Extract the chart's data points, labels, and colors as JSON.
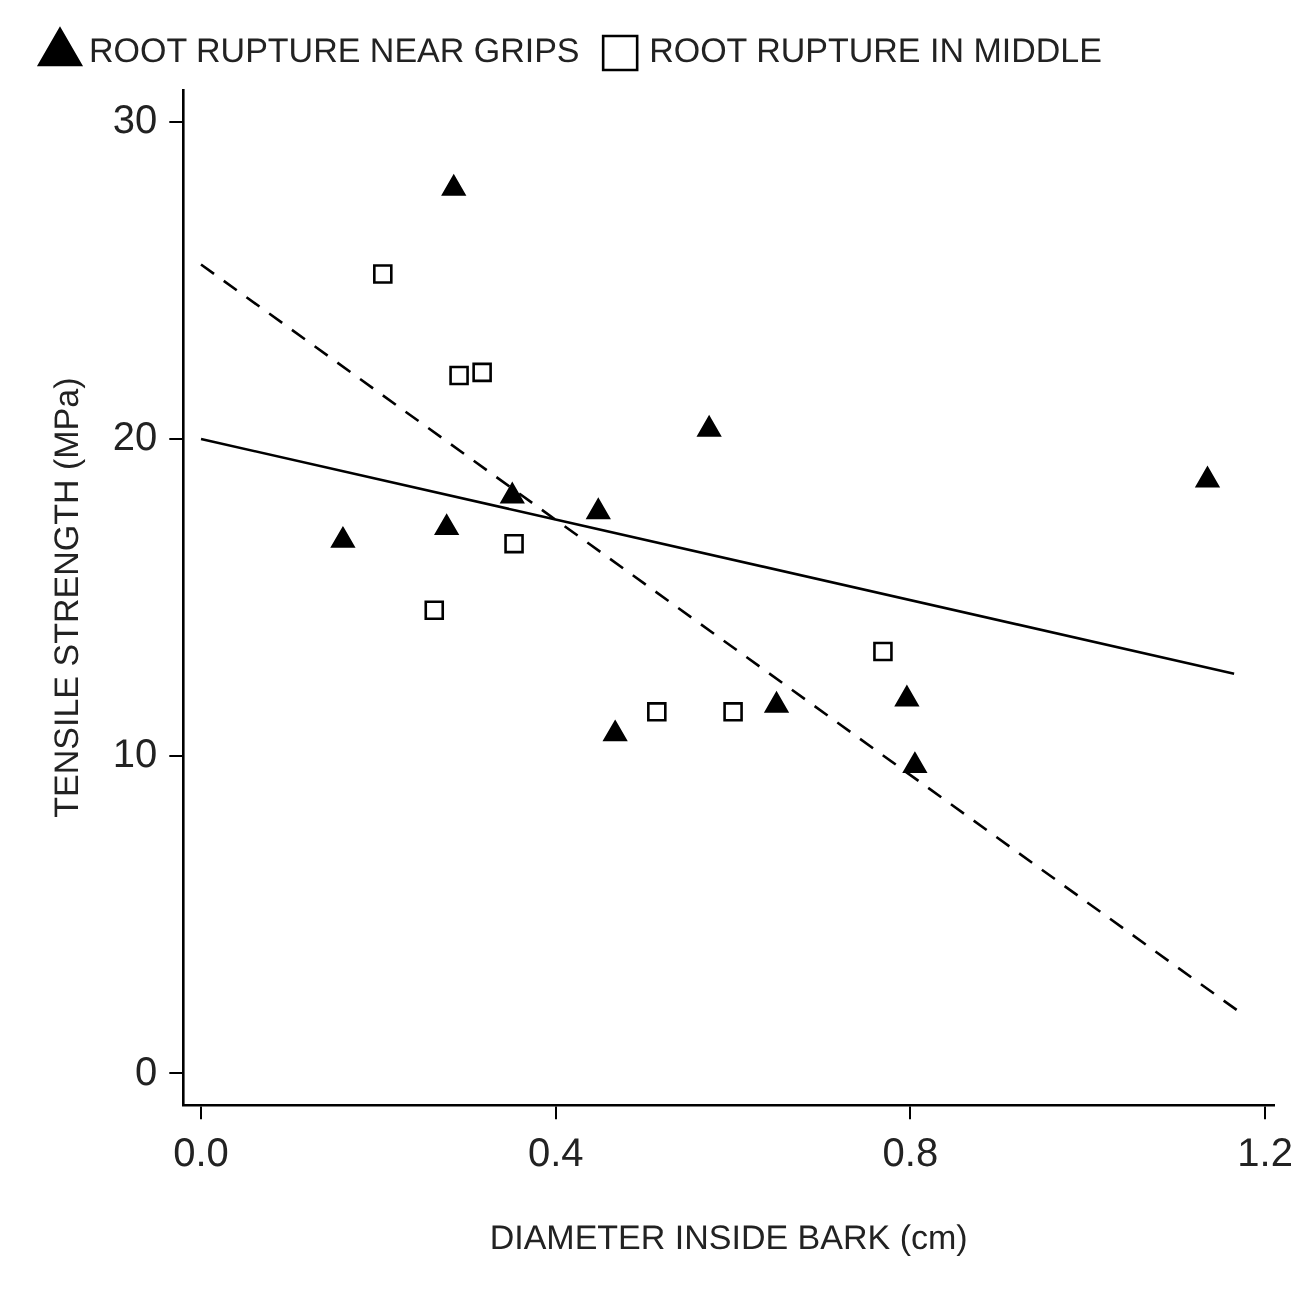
{
  "chart_data": {
    "type": "scatter",
    "xlabel": "DIAMETER INSIDE BARK (cm)",
    "ylabel": "TENSILE STRENGTH (MPa)",
    "xlim": [
      -0.02,
      1.21
    ],
    "xticks": [
      {
        "value": 0,
        "label": "0.0"
      },
      0.4,
      0.8,
      1.2
    ],
    "ylim": [
      -1,
      31
    ],
    "yticks": [
      0,
      10,
      20,
      30
    ],
    "grid": false,
    "legend": "top left",
    "series": [
      {
        "name": "ROOT RUPTURE NEAR GRIPS",
        "type": "scatter",
        "color": "#000000",
        "marker": "triangle",
        "line_style": "solid",
        "x": [
          0.285,
          0.573,
          0.16,
          0.277,
          0.351,
          0.448,
          0.467,
          0.649,
          0.796,
          0.805,
          1.135
        ],
        "values": [
          27.9,
          20.3,
          16.8,
          17.2,
          18.2,
          17.7,
          10.7,
          11.6,
          11.8,
          9.7,
          18.7
        ]
      },
      {
        "name": "ROOT RUPTURE IN MIDDLE",
        "type": "scatter",
        "color": "#000000",
        "marker": "square",
        "line_style": "dashed",
        "x": [
          0.205,
          0.291,
          0.317,
          0.353,
          0.263,
          0.514,
          0.6,
          0.769
        ],
        "values": [
          25.2,
          22.0,
          22.1,
          16.7,
          14.6,
          11.4,
          11.4,
          13.3
        ]
      },
      {
        "type": "line",
        "color": "#000000",
        "marker": "none",
        "line_style": "solid",
        "x": [
          0,
          1.165
        ],
        "values": [
          20.0,
          12.6
        ]
      },
      {
        "type": "line",
        "color": "#000000",
        "marker": "none",
        "line_style": "dashed",
        "x": [
          0,
          1.173
        ],
        "values": [
          25.5,
          1.9
        ]
      }
    ]
  }
}
